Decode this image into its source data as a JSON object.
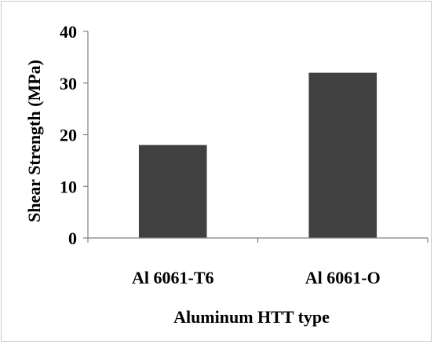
{
  "chart_data": {
    "type": "bar",
    "title": "",
    "xlabel": "Aluminum HTT type",
    "ylabel": "Shear Strength (MPa)",
    "categories": [
      "Al 6061-T6",
      "Al 6061-O"
    ],
    "values": [
      18,
      32
    ],
    "ylim": [
      0,
      40
    ],
    "yticks": [
      0,
      10,
      20,
      30,
      40
    ],
    "grid": false,
    "legend": "none",
    "bar_color": "#404040",
    "axis_color": "#808080"
  }
}
